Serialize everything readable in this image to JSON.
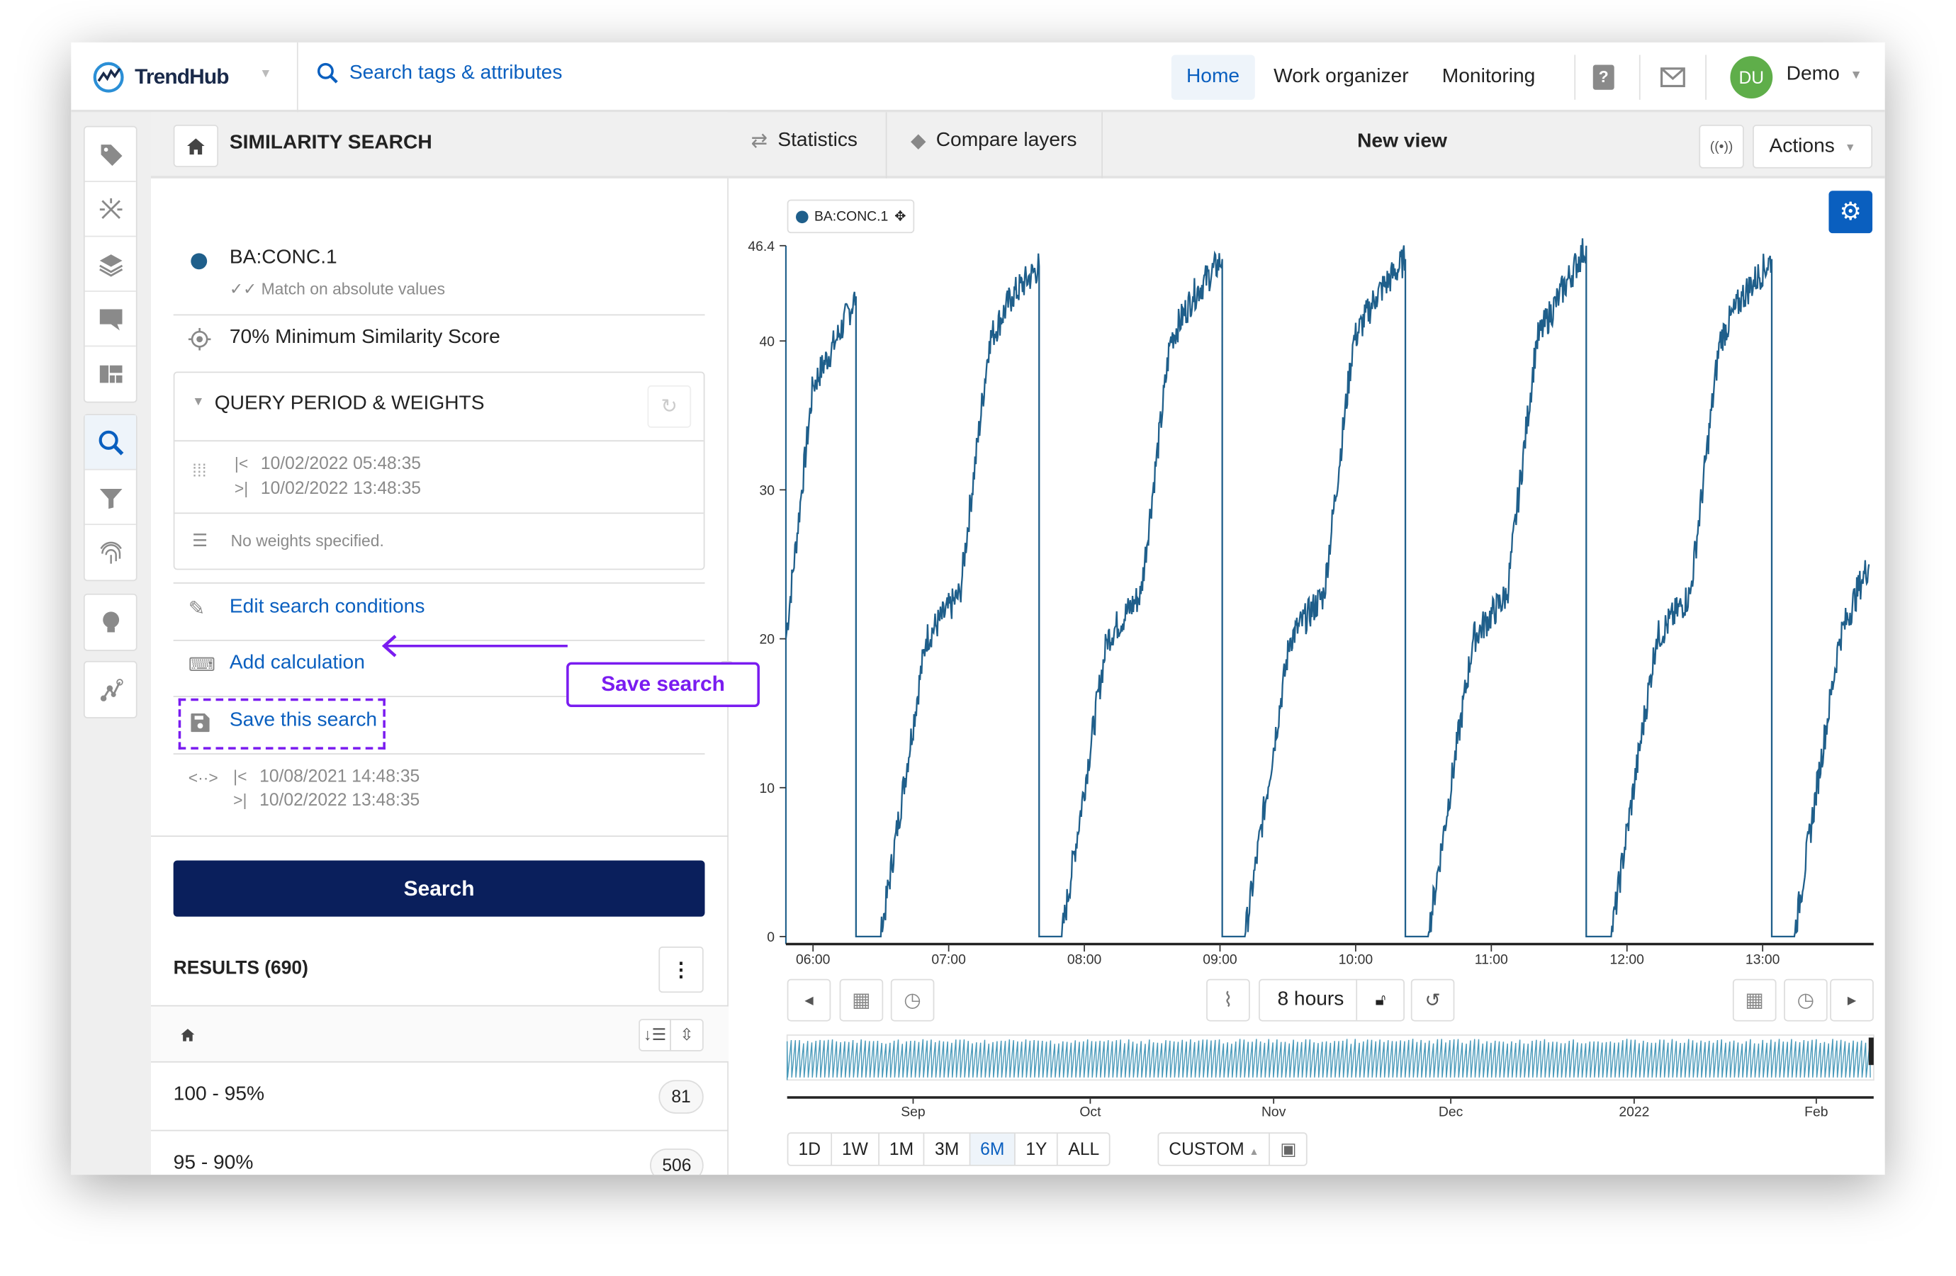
{
  "app": {
    "name": "TrendHub",
    "search_placeholder": "Search tags & attributes"
  },
  "topnav": {
    "items": [
      {
        "label": "Home",
        "active": true
      },
      {
        "label": "Work organizer"
      },
      {
        "label": "Monitoring"
      }
    ],
    "user_initials": "DU",
    "user_name": "Demo",
    "avatar_color": "#5fae4a"
  },
  "rail": {
    "icons": [
      "tag-icon",
      "magic-wand-icon",
      "layers-icon",
      "comment-icon",
      "dashboard-icon",
      "search-icon",
      "filter-icon",
      "fingerprint-icon",
      "lightbulb-icon",
      "graph-icon"
    ],
    "active": "search-icon"
  },
  "panel": {
    "title": "SIMILARITY SEARCH",
    "tag": {
      "name": "BA:CONC.1",
      "subtitle": "Match on absolute values",
      "color": "#1f5f8b"
    },
    "min_score": "70% Minimum Similarity Score",
    "query": {
      "title": "QUERY PERIOD & WEIGHTS",
      "start": "10/02/2022 05:48:35",
      "end": "10/02/2022 13:48:35",
      "weights": "No weights specified."
    },
    "edit_link": "Edit search conditions",
    "calc_link": "Add calculation",
    "save_link": "Save this search",
    "search_range": {
      "start": "10/08/2021 14:48:35",
      "end": "10/02/2022 13:48:35"
    },
    "search_button": "Search",
    "results": {
      "title": "RESULTS (690)",
      "rows": [
        {
          "label": "100 - 95%",
          "count": "81"
        },
        {
          "label": "95 - 90%",
          "count": "506"
        }
      ]
    }
  },
  "annotation": {
    "label": "Save search",
    "color": "#7a1cf0"
  },
  "view": {
    "tabs": [
      {
        "label": "Statistics"
      },
      {
        "label": "Compare layers"
      }
    ],
    "title": "New view",
    "actions": "Actions",
    "duration": "8 hours",
    "ranges": [
      "1D",
      "1W",
      "1M",
      "3M",
      "6M",
      "1Y",
      "ALL"
    ],
    "active_range": "6M",
    "custom": "CUSTOM"
  },
  "chart_data": {
    "type": "line",
    "legend": "BA:CONC.1",
    "color": "#1f5f8b",
    "ylim": [
      0,
      46.4
    ],
    "yticks": [
      "46.4",
      "40",
      "30",
      "20",
      "10",
      "0"
    ],
    "xlim": [
      "05:48",
      "13:48"
    ],
    "xticks": [
      "06:00",
      "07:00",
      "08:00",
      "09:00",
      "10:00",
      "11:00",
      "12:00",
      "13:00"
    ],
    "points": [
      [
        "05:48",
        20
      ],
      [
        "05:55",
        30
      ],
      [
        "06:00",
        37
      ],
      [
        "06:10",
        40
      ],
      [
        "06:19",
        43
      ],
      [
        "06:19",
        0
      ],
      [
        "06:30",
        0
      ],
      [
        "06:50",
        20
      ],
      [
        "07:05",
        23
      ],
      [
        "07:18",
        40
      ],
      [
        "07:28",
        43
      ],
      [
        "07:40",
        45
      ],
      [
        "07:40",
        0
      ],
      [
        "07:50",
        0
      ],
      [
        "08:10",
        20
      ],
      [
        "08:25",
        23
      ],
      [
        "08:38",
        40
      ],
      [
        "08:48",
        43
      ],
      [
        "09:01",
        45.5
      ],
      [
        "09:01",
        0
      ],
      [
        "09:11",
        0
      ],
      [
        "09:31",
        20
      ],
      [
        "09:46",
        23
      ],
      [
        "09:59",
        40
      ],
      [
        "10:09",
        43
      ],
      [
        "10:22",
        45.5
      ],
      [
        "10:22",
        0
      ],
      [
        "10:32",
        0
      ],
      [
        "10:52",
        20
      ],
      [
        "11:07",
        23
      ],
      [
        "11:20",
        40
      ],
      [
        "11:30",
        43
      ],
      [
        "11:42",
        46.4
      ],
      [
        "11:42",
        0
      ],
      [
        "11:53",
        0
      ],
      [
        "12:13",
        20
      ],
      [
        "12:28",
        23
      ],
      [
        "12:41",
        40
      ],
      [
        "12:51",
        43
      ],
      [
        "13:04",
        45.5
      ],
      [
        "13:04",
        0
      ],
      [
        "13:14",
        0
      ],
      [
        "13:34",
        20
      ],
      [
        "13:44",
        24
      ],
      [
        "13:47",
        25
      ]
    ],
    "navigator": {
      "xticks": [
        "Sep",
        "Oct",
        "Nov",
        "Dec",
        "2022",
        "Feb"
      ],
      "color": "#4a9aba"
    }
  }
}
